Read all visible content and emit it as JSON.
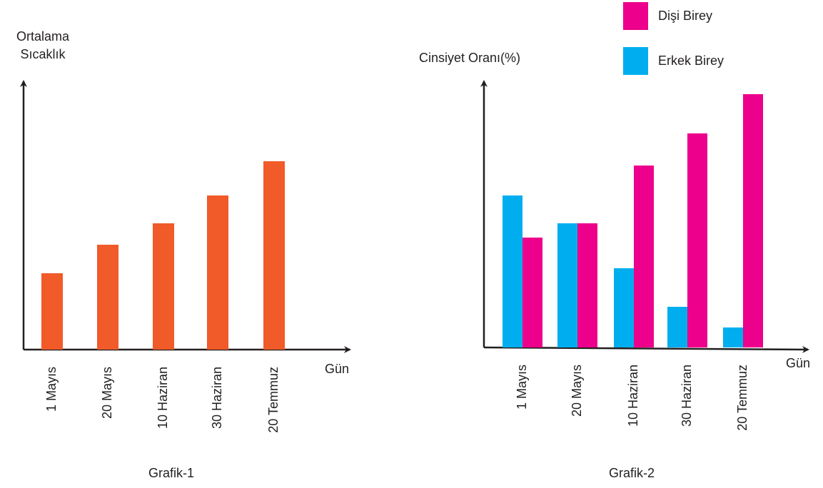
{
  "chart_data": [
    {
      "type": "bar",
      "y_label": [
        "Ortalama",
        "Sıcaklık"
      ],
      "x_label": "Gün",
      "caption": "Grafik-1",
      "categories": [
        "1 Mayıs",
        "20 Mayıs",
        "10 Haziran",
        "30 Haziran",
        "20 Temmuz"
      ],
      "values": [
        107,
        147,
        177,
        216,
        264
      ],
      "color": "#f15a29",
      "ylim": [
        0,
        368
      ]
    },
    {
      "type": "grouped-bar",
      "y_label": [
        "Cinsiyet Oranı(%)"
      ],
      "x_label": "Gün",
      "caption": "Grafik-2",
      "categories": [
        "1 Mayıs",
        "20 Mayıs",
        "10 Haziran",
        "30 Haziran",
        "20 Temmuz"
      ],
      "series": [
        {
          "name": "Erkek Birey",
          "color": "#00aeef",
          "values": [
            213,
            174,
            111,
            57,
            28
          ]
        },
        {
          "name": "Dişi Birey",
          "color": "#ec008c",
          "values": [
            154,
            174,
            255,
            300,
            355
          ]
        }
      ],
      "ylim": [
        0,
        365
      ]
    }
  ]
}
